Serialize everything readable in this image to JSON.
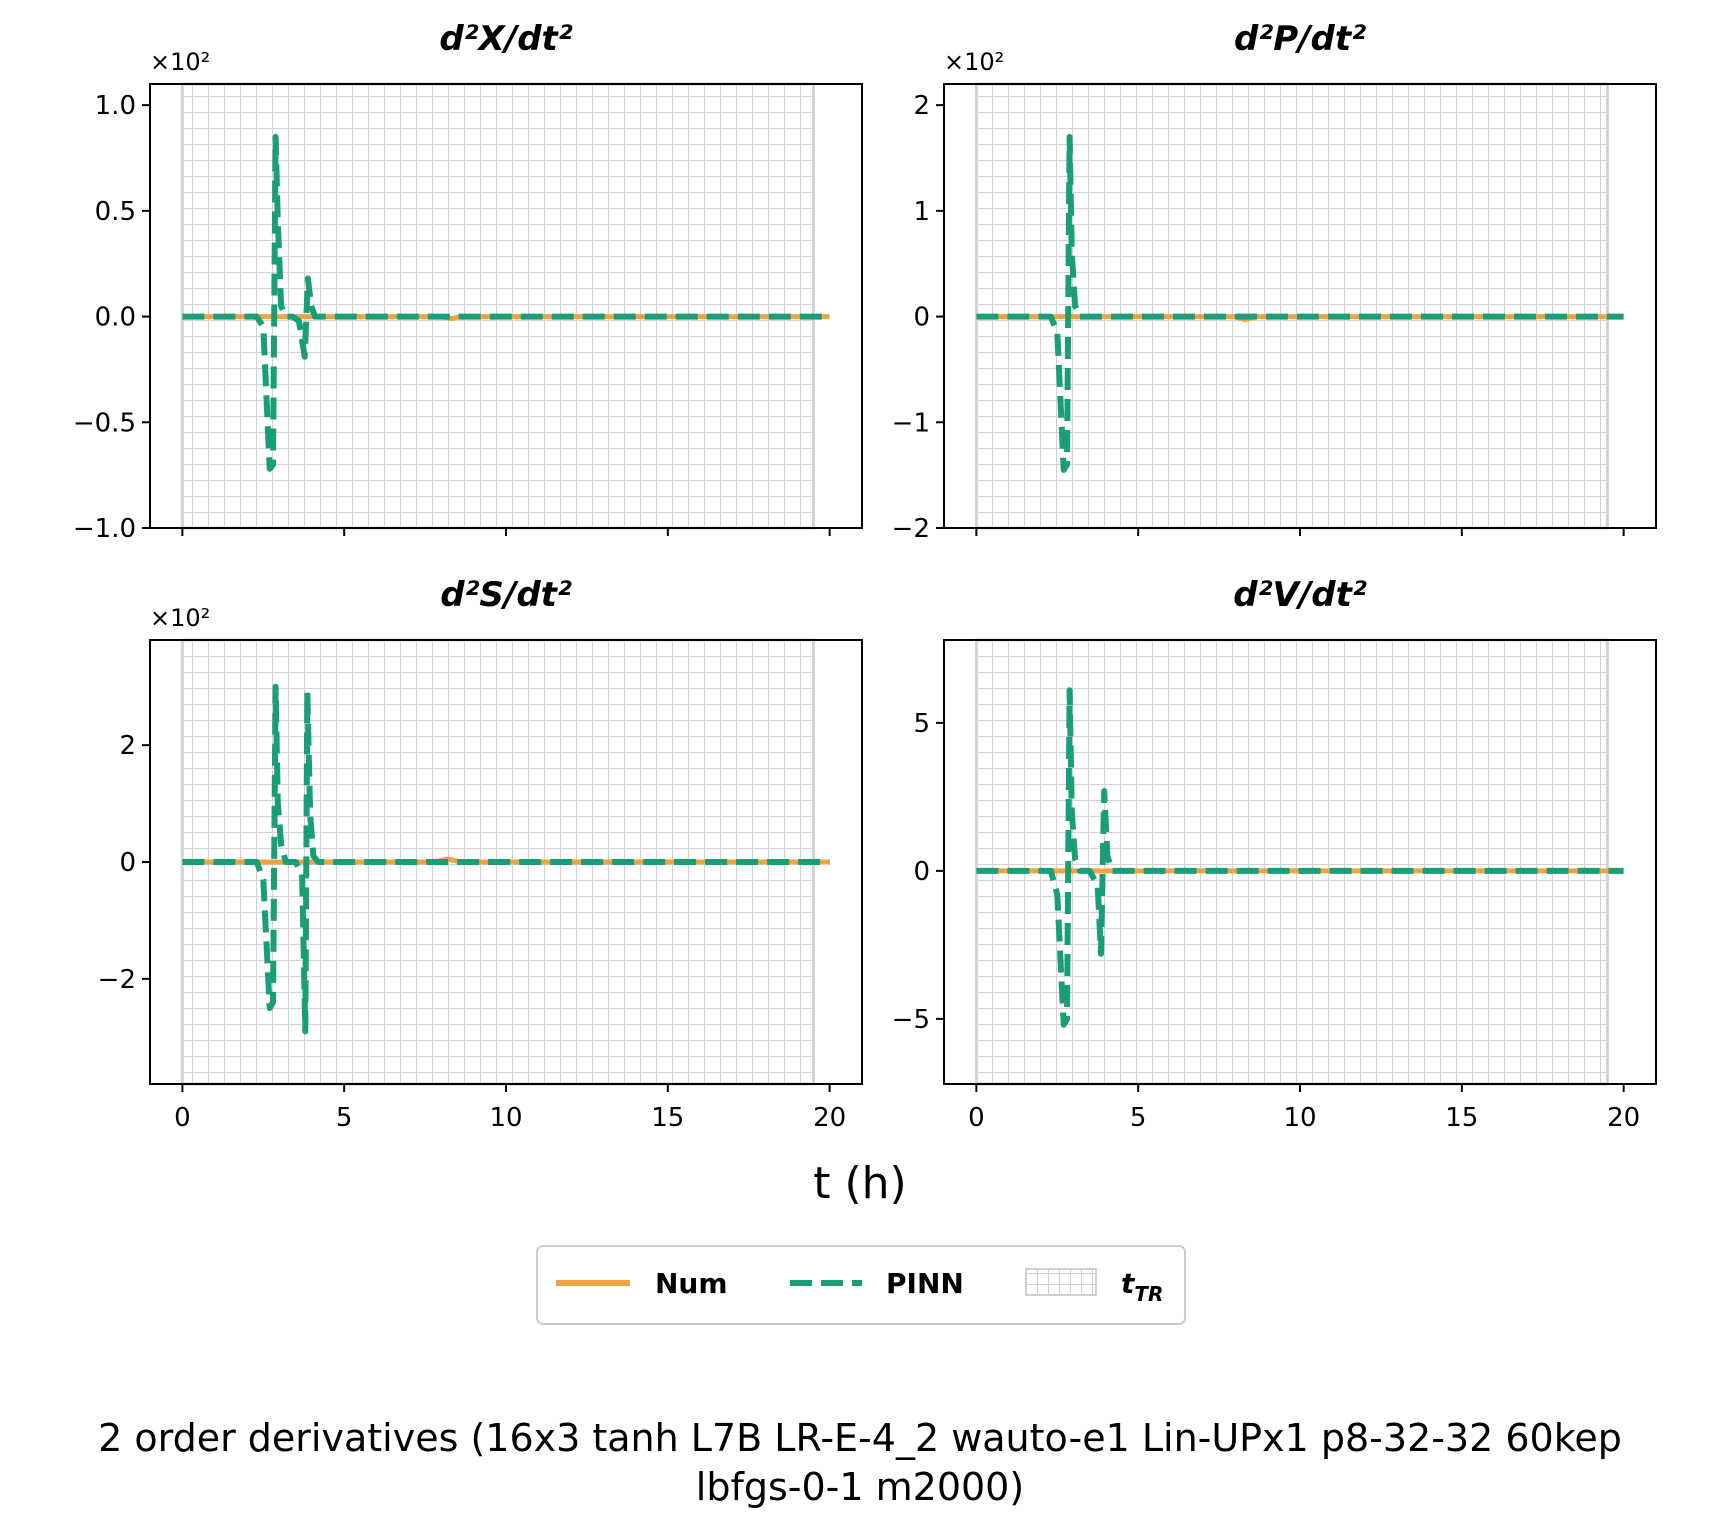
{
  "figure": {
    "xlabel": "t (h)",
    "caption_line1": "2 order derivatives (16x3 tanh L7B LR-E-4_2 wauto-e1 Lin-UPx1 p8-32-32 60kep",
    "caption_line2": "lbfgs-0-1 m2000)"
  },
  "legend": {
    "items": [
      {
        "label": "Num",
        "style": "solid",
        "color": "#f0a441"
      },
      {
        "label": "PINN",
        "style": "dashed",
        "color": "#1a9e77"
      },
      {
        "label": "t",
        "sub": "TR",
        "style": "hatch",
        "color": "#d0d0d0"
      }
    ]
  },
  "colors": {
    "num": "#f0a441",
    "pinn": "#1a9e77",
    "grid": "#d3d3d3"
  },
  "chart_data": [
    {
      "type": "line",
      "title": "d²X/dt²",
      "multiplier": "×10²",
      "xlim": [
        -1,
        21
      ],
      "ylim": [
        -1.0,
        1.1
      ],
      "xticks": [
        0,
        5,
        10,
        15,
        20
      ],
      "xtick_labels": [
        "",
        "",
        "",
        "",
        ""
      ],
      "yticks": [
        -1.0,
        -0.5,
        0.0,
        0.5,
        1.0
      ],
      "ytick_labels": [
        "−1.0",
        "−0.5",
        "0.0",
        "0.5",
        "1.0"
      ],
      "shaded_region": [
        0,
        19.5
      ],
      "series": [
        {
          "name": "Num",
          "x": [
            0,
            2.5,
            3,
            4,
            8,
            8.3,
            8.6,
            20
          ],
          "y": [
            0,
            0,
            0,
            0,
            0,
            -0.01,
            0,
            0
          ]
        },
        {
          "name": "PINN",
          "x": [
            0,
            2.3,
            2.5,
            2.7,
            2.8,
            2.88,
            2.95,
            3.05,
            3.2,
            3.4,
            3.6,
            3.78,
            3.88,
            3.98,
            4.1,
            4.3,
            20
          ],
          "y": [
            0,
            0,
            -0.05,
            -0.72,
            -0.7,
            0.85,
            0.45,
            0.05,
            0,
            0,
            -0.02,
            -0.19,
            0.18,
            0.05,
            0,
            0,
            0
          ]
        }
      ]
    },
    {
      "type": "line",
      "title": "d²P/dt²",
      "multiplier": "×10²",
      "xlim": [
        -1,
        21
      ],
      "ylim": [
        -2.0,
        2.2
      ],
      "xticks": [
        0,
        5,
        10,
        15,
        20
      ],
      "xtick_labels": [
        "",
        "",
        "",
        "",
        ""
      ],
      "yticks": [
        -2,
        -1,
        0,
        1,
        2
      ],
      "ytick_labels": [
        "−2",
        "−1",
        "0",
        "1",
        "2"
      ],
      "shaded_region": [
        0,
        19.5
      ],
      "series": [
        {
          "name": "Num",
          "x": [
            0,
            2.5,
            3,
            4,
            8,
            8.3,
            8.6,
            20
          ],
          "y": [
            0,
            0,
            0,
            0,
            0,
            -0.03,
            0,
            0
          ]
        },
        {
          "name": "PINN",
          "x": [
            0,
            2.3,
            2.5,
            2.7,
            2.8,
            2.88,
            2.95,
            3.05,
            3.2,
            3.5,
            20
          ],
          "y": [
            0,
            0,
            -0.15,
            -1.45,
            -1.4,
            1.7,
            0.6,
            0.1,
            0,
            0,
            0
          ]
        }
      ]
    },
    {
      "type": "line",
      "title": "d²S/dt²",
      "multiplier": "×10²",
      "xlim": [
        -1,
        21
      ],
      "ylim": [
        -3.8,
        3.8
      ],
      "xticks": [
        0,
        5,
        10,
        15,
        20
      ],
      "xtick_labels": [
        "0",
        "5",
        "10",
        "15",
        "20"
      ],
      "yticks": [
        -2,
        0,
        2
      ],
      "ytick_labels": [
        "−2",
        "0",
        "2"
      ],
      "shaded_region": [
        0,
        19.5
      ],
      "series": [
        {
          "name": "Num",
          "x": [
            0,
            2.5,
            3,
            4,
            7.8,
            8.2,
            8.6,
            20
          ],
          "y": [
            0,
            0,
            0,
            0,
            0,
            0.05,
            0,
            0
          ]
        },
        {
          "name": "PINN",
          "x": [
            0,
            2.3,
            2.5,
            2.7,
            2.8,
            2.88,
            2.95,
            3.05,
            3.2,
            3.5,
            3.7,
            3.8,
            3.86,
            3.95,
            4.05,
            4.2,
            20
          ],
          "y": [
            0,
            0,
            -0.3,
            -2.5,
            -2.4,
            3.0,
            1.0,
            0.3,
            0,
            0,
            -0.2,
            -2.9,
            2.9,
            0.8,
            0.1,
            0,
            0
          ]
        }
      ]
    },
    {
      "type": "line",
      "title": "d²V/dt²",
      "multiplier": "",
      "xlim": [
        -1,
        21
      ],
      "ylim": [
        -7.2,
        7.8
      ],
      "xticks": [
        0,
        5,
        10,
        15,
        20
      ],
      "xtick_labels": [
        "0",
        "5",
        "10",
        "15",
        "20"
      ],
      "yticks": [
        -5,
        0,
        5
      ],
      "ytick_labels": [
        "−5",
        "0",
        "5"
      ],
      "shaded_region": [
        0,
        19.5
      ],
      "series": [
        {
          "name": "Num",
          "x": [
            0,
            2.5,
            3,
            4,
            8,
            20
          ],
          "y": [
            0,
            0,
            0,
            0,
            0,
            0
          ]
        },
        {
          "name": "PINN",
          "x": [
            0,
            2.3,
            2.5,
            2.7,
            2.8,
            2.88,
            2.95,
            3.05,
            3.2,
            3.5,
            3.75,
            3.85,
            3.95,
            4.05,
            4.2,
            20
          ],
          "y": [
            0,
            0,
            -0.8,
            -5.2,
            -5.0,
            6.1,
            2.0,
            0.4,
            0,
            0,
            -0.5,
            -2.8,
            2.7,
            0.5,
            0,
            0
          ]
        }
      ]
    }
  ]
}
